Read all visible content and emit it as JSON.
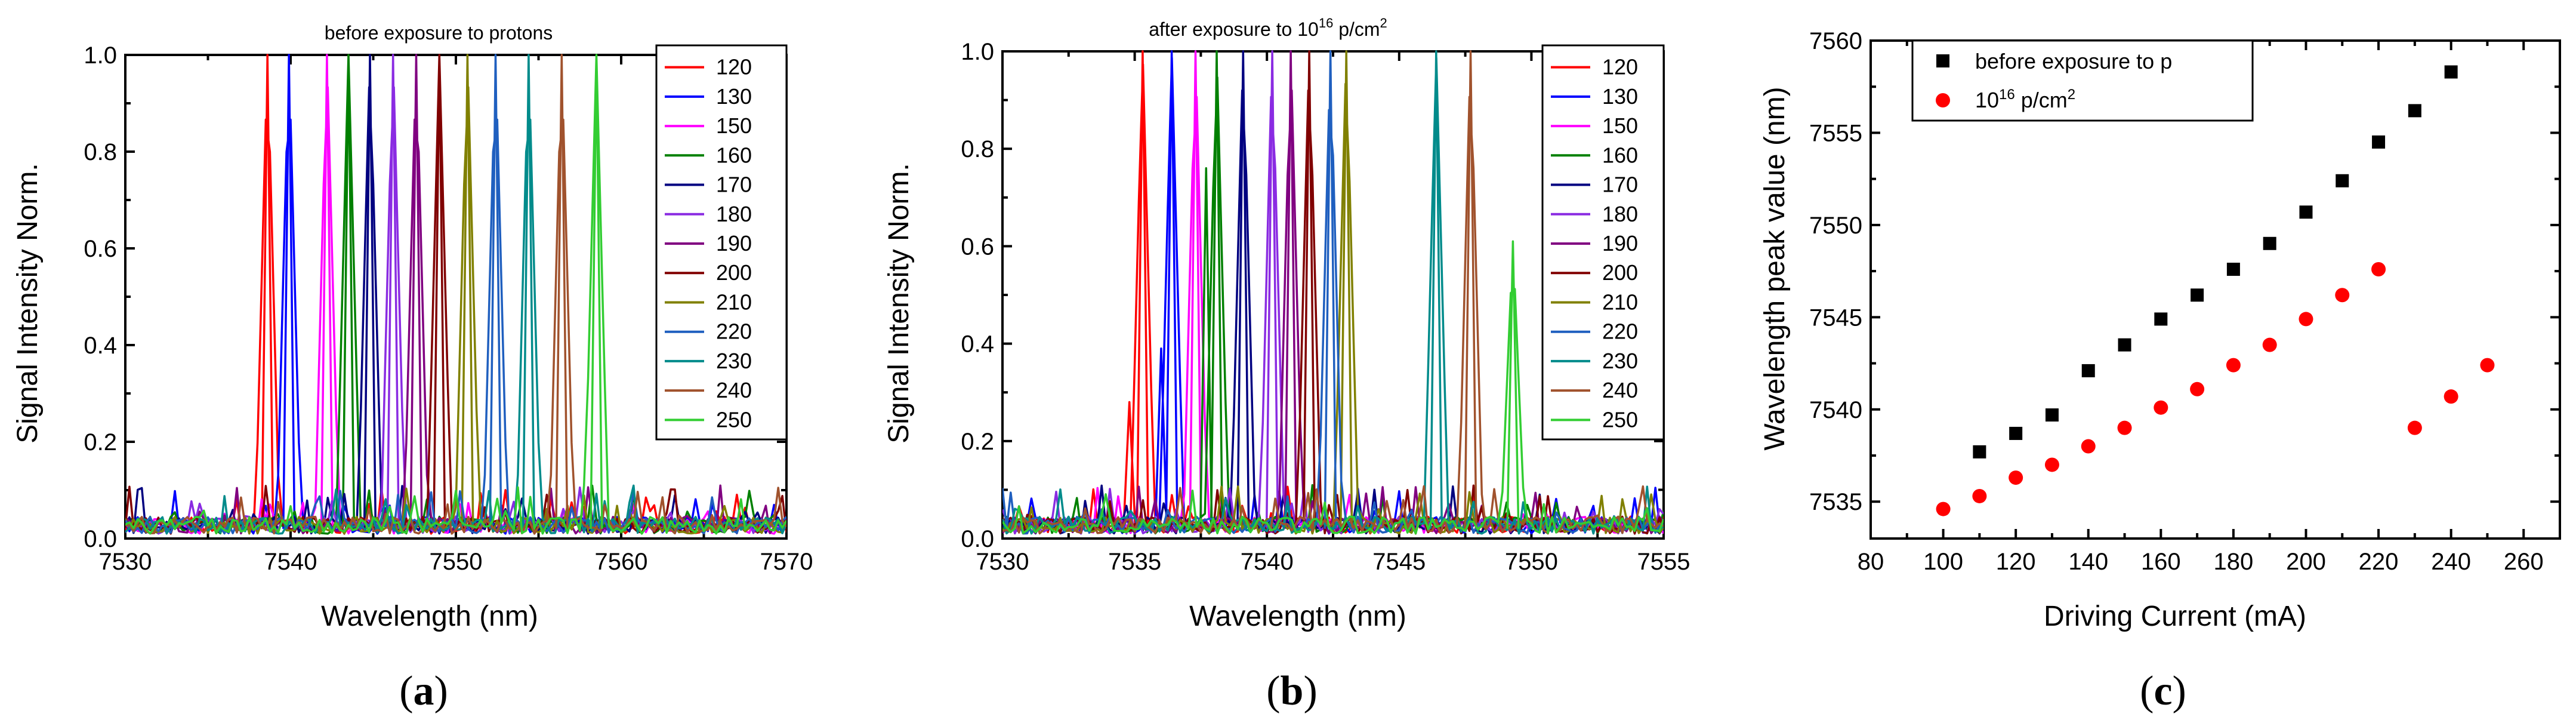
{
  "chart_data": [
    {
      "type": "line",
      "panel": "a",
      "panel_label": "a",
      "title": "before exposure to protons",
      "xlabel": "Wavelength (nm)",
      "ylabel": "Signal Intensity Norm.",
      "xlim": [
        7530,
        7570
      ],
      "ylim": [
        0,
        1.0
      ],
      "xticks": [
        7530,
        7540,
        7550,
        7560,
        7570
      ],
      "yticks": [
        0.0,
        0.2,
        0.4,
        0.6,
        0.8,
        1.0
      ],
      "legend_position": "top-right",
      "series": [
        {
          "name": "120",
          "color": "#ff0000",
          "peak_x": 7538.6,
          "peak_y": 1.0
        },
        {
          "name": "130",
          "color": "#0000ff",
          "peak_x": 7539.9,
          "peak_y": 1.0
        },
        {
          "name": "150",
          "color": "#ff00ff",
          "peak_x": 7542.2,
          "peak_y": 1.0
        },
        {
          "name": "160",
          "color": "#008000",
          "peak_x": 7543.5,
          "peak_y": 1.0
        },
        {
          "name": "170",
          "color": "#000080",
          "peak_x": 7544.8,
          "peak_y": 1.0
        },
        {
          "name": "180",
          "color": "#8a2be2",
          "peak_x": 7546.2,
          "peak_y": 1.0
        },
        {
          "name": "190",
          "color": "#800080",
          "peak_x": 7547.6,
          "peak_y": 1.0
        },
        {
          "name": "200",
          "color": "#800000",
          "peak_x": 7549.0,
          "peak_y": 1.0
        },
        {
          "name": "210",
          "color": "#808000",
          "peak_x": 7550.7,
          "peak_y": 1.0
        },
        {
          "name": "220",
          "color": "#1f5fbf",
          "peak_x": 7552.4,
          "peak_y": 1.0
        },
        {
          "name": "230",
          "color": "#008b8b",
          "peak_x": 7554.4,
          "peak_y": 1.0
        },
        {
          "name": "240",
          "color": "#a0522d",
          "peak_x": 7556.4,
          "peak_y": 1.0
        },
        {
          "name": "250",
          "color": "#32cd32",
          "peak_x": 7558.5,
          "peak_y": 1.0
        }
      ]
    },
    {
      "type": "line",
      "panel": "b",
      "panel_label": "b",
      "title": "after exposure to 10",
      "title_sup": "16",
      "title_end": " p/cm",
      "title_sup2": "2",
      "xlabel": "Wavelength (nm)",
      "ylabel": "Signal Intensity Norm.",
      "xlim": [
        7530,
        7555
      ],
      "ylim": [
        0,
        1.0
      ],
      "xticks": [
        7530,
        7535,
        7540,
        7545,
        7550,
        7555
      ],
      "yticks": [
        0.0,
        0.2,
        0.4,
        0.6,
        0.8,
        1.0
      ],
      "legend_position": "top-right",
      "series": [
        {
          "name": "120",
          "color": "#ff0000",
          "peak_x": 7535.3,
          "peak_y": 1.0
        },
        {
          "name": "130",
          "color": "#0000ff",
          "peak_x": 7536.4,
          "peak_y": 1.0
        },
        {
          "name": "150",
          "color": "#ff00ff",
          "peak_x": 7537.3,
          "peak_y": 1.0
        },
        {
          "name": "160",
          "color": "#008000",
          "peak_x": 7538.1,
          "peak_y": 1.0
        },
        {
          "name": "170",
          "color": "#000080",
          "peak_x": 7539.1,
          "peak_y": 1.0
        },
        {
          "name": "180",
          "color": "#8a2be2",
          "peak_x": 7540.2,
          "peak_y": 1.0
        },
        {
          "name": "190",
          "color": "#800080",
          "peak_x": 7540.9,
          "peak_y": 1.0
        },
        {
          "name": "200",
          "color": "#800000",
          "peak_x": 7541.6,
          "peak_y": 1.0
        },
        {
          "name": "210",
          "color": "#808000",
          "peak_x": 7543.0,
          "peak_y": 1.0
        },
        {
          "name": "220",
          "color": "#1f5fbf",
          "peak_x": 7542.4,
          "peak_y": 1.0
        },
        {
          "name": "230",
          "color": "#008b8b",
          "peak_x": 7546.4,
          "peak_y": 1.0
        },
        {
          "name": "240",
          "color": "#a0522d",
          "peak_x": 7547.7,
          "peak_y": 1.0
        },
        {
          "name": "250",
          "color": "#32cd32",
          "peak_x": 7549.3,
          "peak_y": 0.61
        }
      ]
    },
    {
      "type": "scatter",
      "panel": "c",
      "panel_label": "c",
      "xlabel": "Driving Current (mA)",
      "ylabel": "Wavelength peak value (nm)",
      "xlim": [
        80,
        270
      ],
      "ylim": [
        7533,
        7560
      ],
      "xticks": [
        80,
        100,
        120,
        140,
        160,
        180,
        200,
        220,
        240,
        260
      ],
      "yticks": [
        7535,
        7540,
        7545,
        7550,
        7555,
        7560
      ],
      "legend_position": "top-left",
      "series": [
        {
          "name": "before exposure to p",
          "marker": "square",
          "color": "#000000",
          "x": [
            110,
            120,
            130,
            140,
            150,
            160,
            170,
            180,
            190,
            200,
            210,
            220,
            230,
            240
          ],
          "y": [
            7537.7,
            7538.7,
            7539.7,
            7542.1,
            7543.5,
            7544.9,
            7546.2,
            7547.6,
            7549.0,
            7550.7,
            7552.4,
            7554.5,
            7556.2,
            7558.3
          ]
        },
        {
          "name": "10",
          "name_sup": "16",
          "name_end": " p/cm",
          "name_sup2": "2",
          "marker": "circle",
          "color": "#ff0000",
          "x": [
            100,
            110,
            120,
            130,
            140,
            150,
            160,
            170,
            180,
            190,
            200,
            210,
            220,
            230,
            240,
            250
          ],
          "y": [
            7534.6,
            7535.3,
            7536.3,
            7537.0,
            7538.0,
            7539.0,
            7540.1,
            7541.1,
            7542.4,
            7543.5,
            7544.9,
            7546.2,
            7547.6,
            7539.0,
            7540.7,
            7542.4
          ]
        }
      ]
    }
  ]
}
